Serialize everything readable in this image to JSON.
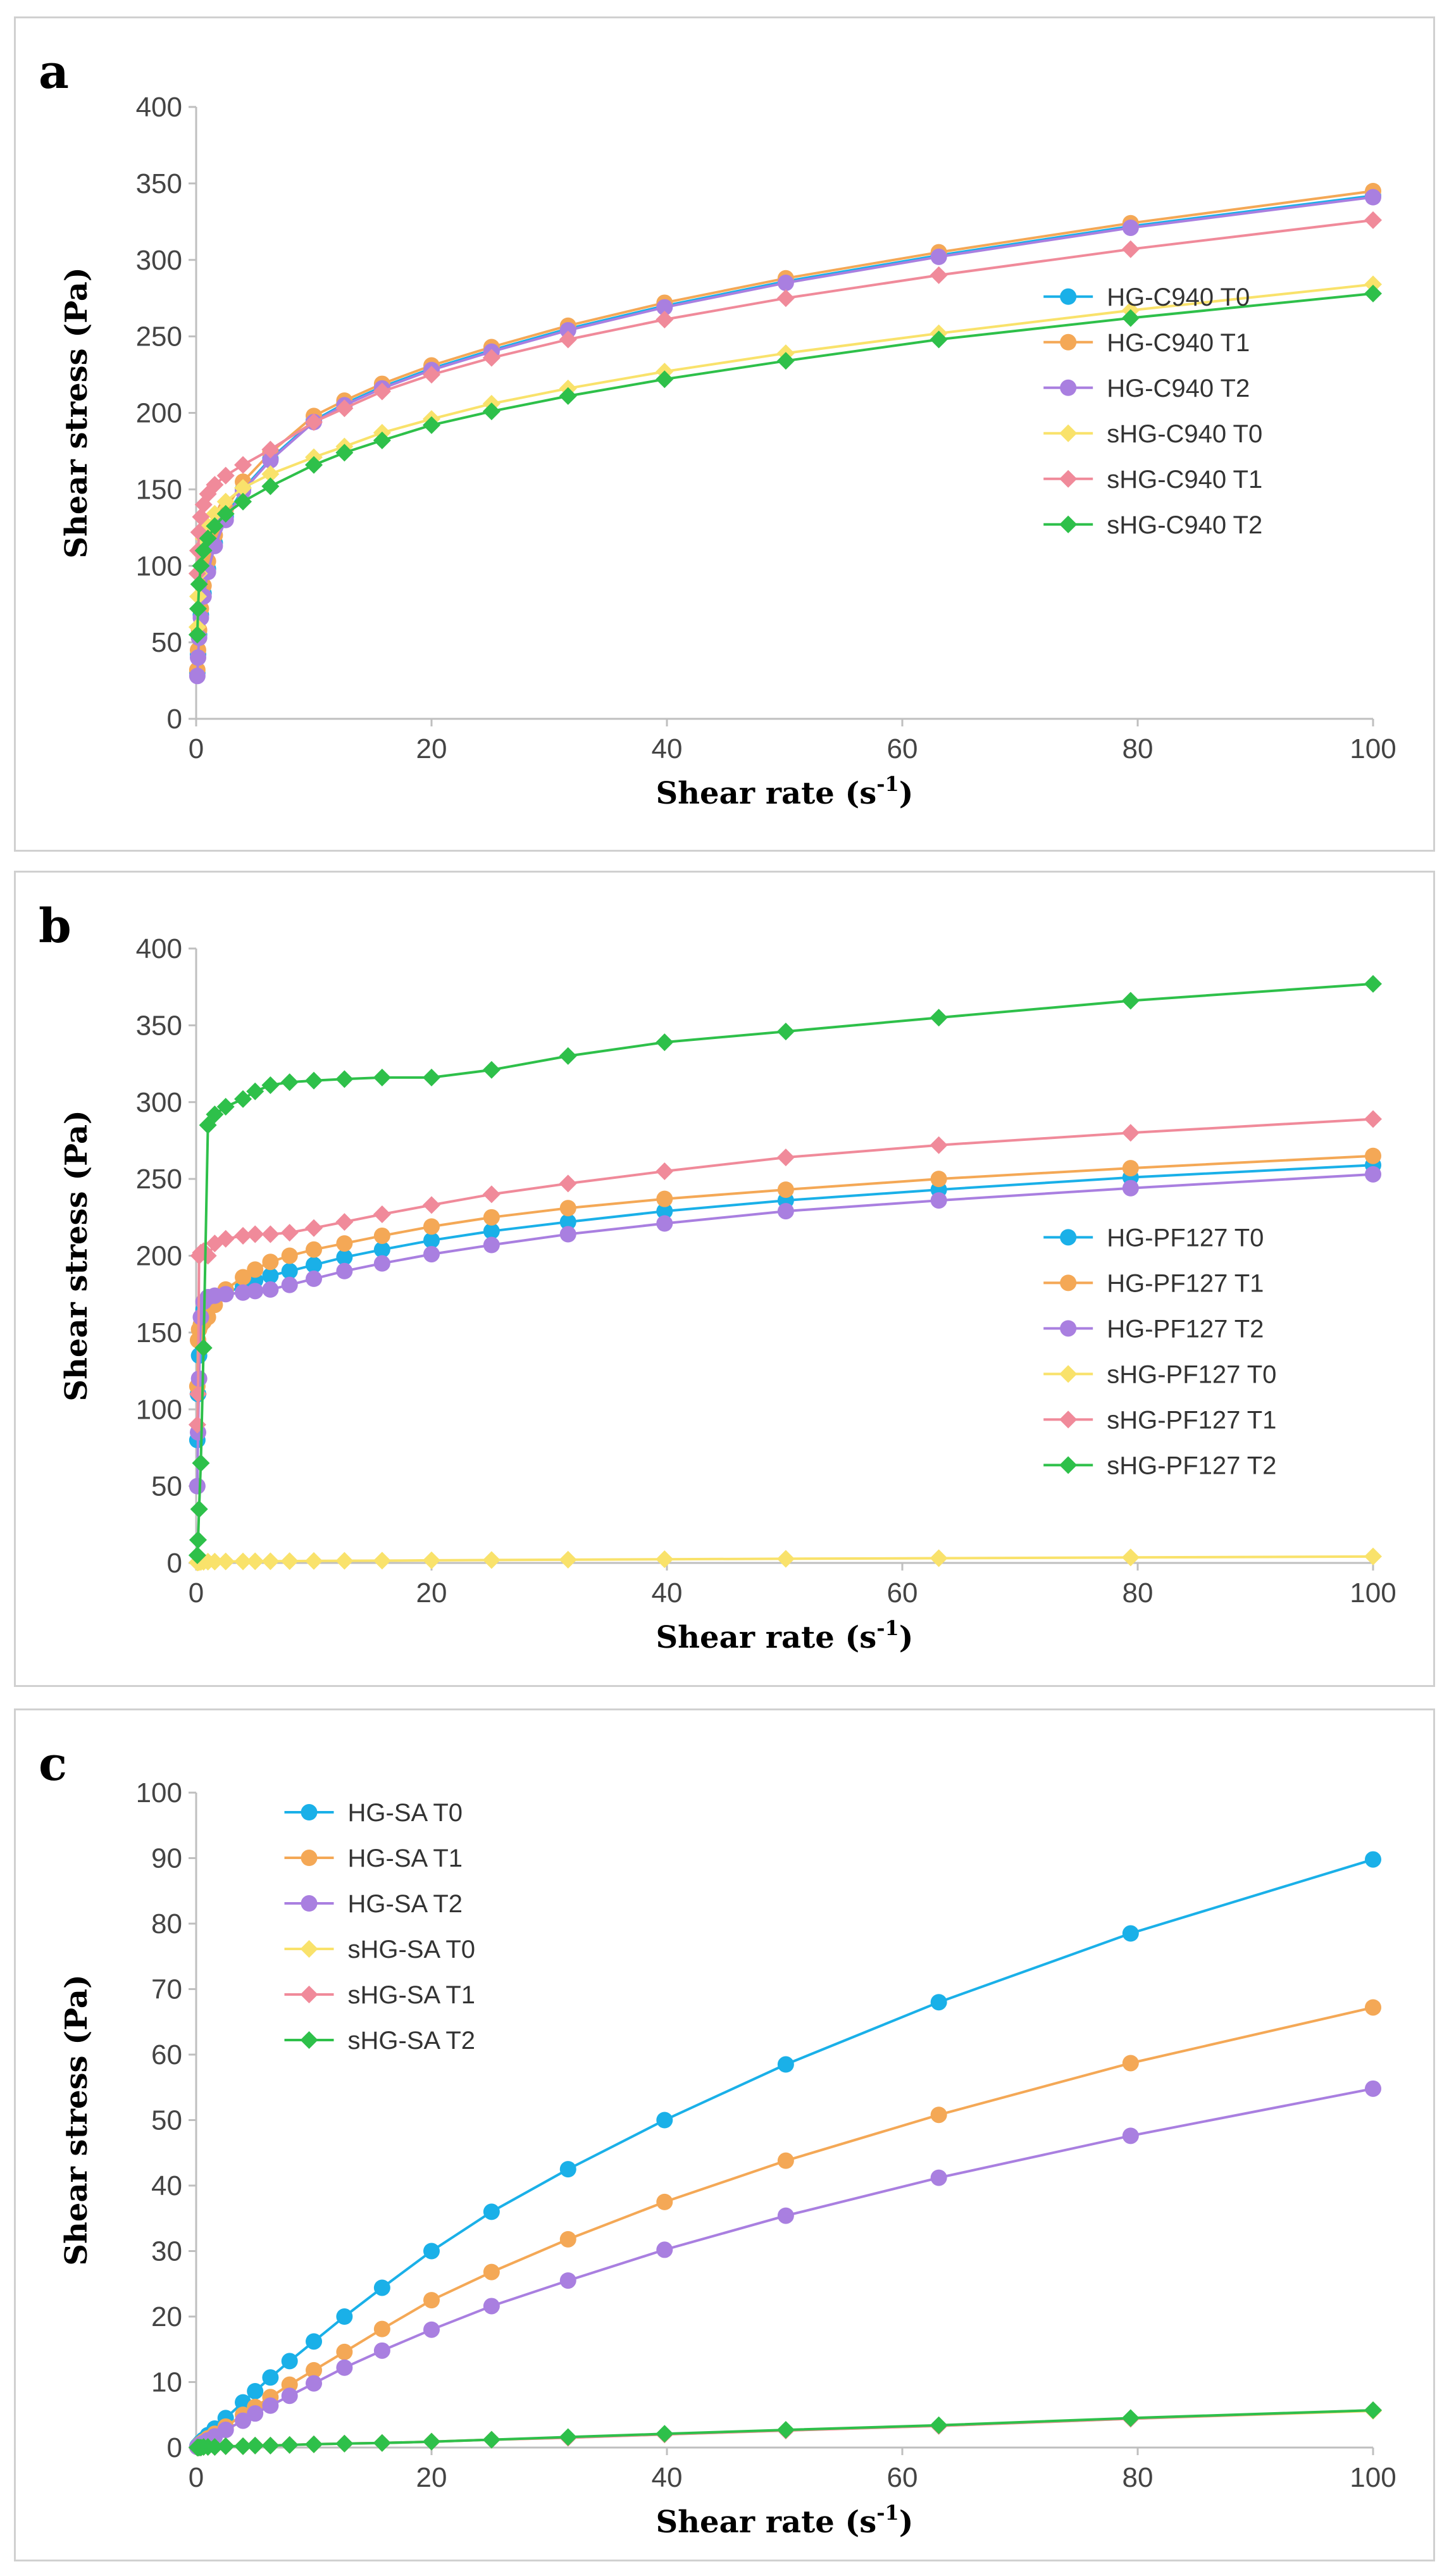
{
  "chart_data": [
    {
      "panel": "a",
      "type": "line",
      "xlabel": "Shear rate (s",
      "xlabel_sup": "-1",
      "xlabel_close": ")",
      "ylabel": "Shear stress (Pa)",
      "xlim": [
        0,
        100
      ],
      "ylim": [
        0,
        400
      ],
      "xticks": [
        0,
        20,
        40,
        60,
        80,
        100
      ],
      "yticks": [
        0,
        50,
        100,
        150,
        200,
        250,
        300,
        350,
        400
      ],
      "grid": false,
      "legend_position": "right",
      "legend_x": 0.72,
      "legend_y": 0.31,
      "x": [
        0.1,
        0.16,
        0.25,
        0.4,
        0.63,
        1.0,
        1.58,
        2.51,
        3.98,
        6.31,
        10.0,
        12.6,
        15.8,
        20.0,
        25.1,
        31.6,
        39.8,
        50.1,
        63.1,
        79.4,
        100
      ],
      "series": [
        {
          "name": "HG-C940  T0",
          "color": "#1ab0e8",
          "marker": "circle",
          "values": [
            30,
            42,
            55,
            68,
            82,
            98,
            115,
            132,
            150,
            170,
            195,
            206,
            217,
            229,
            241,
            255,
            270,
            286,
            303,
            322,
            342
          ]
        },
        {
          "name": "HG-C940  T1",
          "color": "#f4a856",
          "marker": "circle",
          "values": [
            32,
            45,
            58,
            72,
            87,
            103,
            120,
            137,
            155,
            174,
            198,
            208,
            219,
            231,
            243,
            257,
            272,
            288,
            305,
            324,
            345
          ]
        },
        {
          "name": "HG-C940  T2",
          "color": "#a97fe0",
          "marker": "circle",
          "values": [
            28,
            40,
            53,
            66,
            80,
            96,
            113,
            130,
            149,
            169,
            194,
            205,
            216,
            228,
            240,
            254,
            269,
            285,
            302,
            321,
            341
          ]
        },
        {
          "name": "sHG-C940  T0",
          "color": "#f9e26b",
          "marker": "diamond",
          "values": [
            60,
            80,
            95,
            108,
            118,
            126,
            134,
            142,
            151,
            160,
            171,
            178,
            187,
            196,
            206,
            216,
            227,
            239,
            252,
            267,
            284
          ]
        },
        {
          "name": "sHG-C940  T1",
          "color": "#f08a9a",
          "marker": "diamond",
          "values": [
            95,
            110,
            122,
            132,
            140,
            147,
            153,
            159,
            166,
            176,
            194,
            203,
            214,
            225,
            236,
            248,
            261,
            275,
            290,
            307,
            326
          ]
        },
        {
          "name": "sHG-C940  T2",
          "color": "#2ec04a",
          "marker": "diamond",
          "values": [
            55,
            72,
            88,
            100,
            110,
            118,
            126,
            134,
            142,
            152,
            166,
            174,
            182,
            192,
            201,
            211,
            222,
            234,
            248,
            262,
            278
          ]
        }
      ]
    },
    {
      "panel": "b",
      "type": "line",
      "xlabel": "Shear rate (s",
      "xlabel_sup": "-1",
      "xlabel_close": ")",
      "ylabel": "Shear stress (Pa)",
      "xlim": [
        0,
        100
      ],
      "ylim": [
        0,
        400
      ],
      "xticks": [
        0,
        20,
        40,
        60,
        80,
        100
      ],
      "yticks": [
        0,
        50,
        100,
        150,
        200,
        250,
        300,
        350,
        400
      ],
      "grid": false,
      "legend_position": "right",
      "legend_x": 0.72,
      "legend_y": 0.47,
      "x": [
        0.1,
        0.16,
        0.25,
        0.4,
        0.63,
        1.0,
        1.58,
        2.51,
        3.98,
        5.01,
        6.31,
        7.94,
        10.0,
        12.6,
        15.8,
        20.0,
        25.1,
        31.6,
        39.8,
        50.1,
        63.1,
        79.4,
        100
      ],
      "series": [
        {
          "name": "HG-PF127  T0",
          "color": "#1ab0e8",
          "marker": "circle",
          "values": [
            80,
            110,
            135,
            155,
            165,
            170,
            173,
            176,
            180,
            184,
            187,
            190,
            194,
            199,
            204,
            210,
            216,
            222,
            229,
            236,
            243,
            251,
            259
          ]
        },
        {
          "name": "HG-PF127  T1",
          "color": "#f4a856",
          "marker": "circle",
          "values": [
            115,
            145,
            152,
            155,
            157,
            160,
            168,
            178,
            186,
            191,
            196,
            200,
            204,
            208,
            213,
            219,
            225,
            231,
            237,
            243,
            250,
            257,
            265
          ]
        },
        {
          "name": "HG-PF127  T2",
          "color": "#a97fe0",
          "marker": "circle",
          "values": [
            50,
            85,
            120,
            160,
            170,
            173,
            174,
            175,
            176,
            177,
            178,
            181,
            185,
            190,
            195,
            201,
            207,
            214,
            221,
            229,
            236,
            244,
            253
          ]
        },
        {
          "name": "sHG-PF127  T0",
          "color": "#f9e26b",
          "marker": "diamond",
          "values": [
            0.3,
            0.4,
            0.5,
            0.6,
            0.7,
            0.8,
            0.9,
            1.0,
            1.0,
            1.1,
            1.1,
            1.2,
            1.3,
            1.4,
            1.5,
            1.7,
            1.9,
            2.1,
            2.4,
            2.7,
            3.1,
            3.6,
            4.2
          ]
        },
        {
          "name": "sHG-PF127  T1",
          "color": "#f08a9a",
          "marker": "diamond",
          "values": [
            90,
            110,
            200,
            202,
            203,
            200,
            208,
            211,
            213,
            214,
            214,
            215,
            218,
            222,
            227,
            233,
            240,
            247,
            255,
            264,
            272,
            280,
            289
          ]
        },
        {
          "name": "sHG-PF127  T2",
          "color": "#2ec04a",
          "marker": "diamond",
          "values": [
            5,
            15,
            35,
            65,
            140,
            285,
            292,
            297,
            302,
            307,
            311,
            313,
            314,
            315,
            316,
            316,
            321,
            330,
            339,
            346,
            355,
            366,
            377
          ]
        }
      ]
    },
    {
      "panel": "c",
      "type": "line",
      "xlabel": "Shear rate (s",
      "xlabel_sup": "-1",
      "xlabel_close": ")",
      "ylabel": "Shear stress (Pa)",
      "xlim": [
        0,
        100
      ],
      "ylim": [
        0,
        100
      ],
      "xticks": [
        0,
        20,
        40,
        60,
        80,
        100
      ],
      "yticks": [
        0,
        10,
        20,
        30,
        40,
        50,
        60,
        70,
        80,
        90,
        100
      ],
      "grid": false,
      "legend_position": "top-left",
      "legend_x": 0.075,
      "legend_y": 0.03,
      "x": [
        0.1,
        0.16,
        0.25,
        0.4,
        0.63,
        1.0,
        1.58,
        2.51,
        3.98,
        5.01,
        6.31,
        7.94,
        10.0,
        12.6,
        15.8,
        20.0,
        25.1,
        31.6,
        39.8,
        50.1,
        63.1,
        79.4,
        100
      ],
      "series": [
        {
          "name": "HG-SA  T0",
          "color": "#1ab0e8",
          "marker": "circle",
          "values": [
            0.2,
            0.3,
            0.5,
            0.8,
            1.2,
            1.9,
            2.9,
            4.5,
            6.9,
            8.6,
            10.7,
            13.2,
            16.2,
            20.0,
            24.4,
            30.0,
            36.0,
            42.5,
            50.0,
            58.5,
            68.0,
            78.5,
            89.8
          ]
        },
        {
          "name": "HG-SA  T1",
          "color": "#f4a856",
          "marker": "circle",
          "values": [
            0.1,
            0.2,
            0.4,
            0.6,
            0.9,
            1.4,
            2.1,
            3.2,
            5.0,
            6.2,
            7.7,
            9.6,
            11.8,
            14.6,
            18.1,
            22.5,
            26.8,
            31.8,
            37.5,
            43.8,
            50.8,
            58.7,
            67.2
          ]
        },
        {
          "name": "HG-SA  T2",
          "color": "#a97fe0",
          "marker": "circle",
          "values": [
            0.1,
            0.2,
            0.3,
            0.5,
            0.7,
            1.1,
            1.7,
            2.7,
            4.1,
            5.2,
            6.4,
            7.9,
            9.8,
            12.2,
            14.8,
            18.0,
            21.6,
            25.5,
            30.2,
            35.4,
            41.2,
            47.6,
            54.8
          ]
        },
        {
          "name": "sHG-SA  T0",
          "color": "#f9e26b",
          "marker": "diamond",
          "values": [
            0.0,
            0.0,
            0.0,
            0.0,
            0.1,
            0.1,
            0.1,
            0.2,
            0.2,
            0.3,
            0.3,
            0.4,
            0.5,
            0.6,
            0.7,
            0.9,
            1.2,
            1.5,
            2.0,
            2.6,
            3.3,
            4.4,
            5.6
          ]
        },
        {
          "name": "sHG-SA  T1",
          "color": "#f08a9a",
          "marker": "diamond",
          "values": [
            0.0,
            0.0,
            0.0,
            0.0,
            0.1,
            0.1,
            0.1,
            0.2,
            0.2,
            0.3,
            0.3,
            0.4,
            0.5,
            0.6,
            0.7,
            0.9,
            1.2,
            1.5,
            2.0,
            2.6,
            3.3,
            4.4,
            5.7
          ]
        },
        {
          "name": "sHG-SA  T2",
          "color": "#2ec04a",
          "marker": "diamond",
          "values": [
            0.0,
            0.0,
            0.0,
            0.0,
            0.1,
            0.1,
            0.1,
            0.2,
            0.2,
            0.3,
            0.3,
            0.4,
            0.5,
            0.6,
            0.7,
            0.9,
            1.2,
            1.6,
            2.1,
            2.7,
            3.4,
            4.5,
            5.7
          ]
        }
      ]
    }
  ],
  "labels": {
    "a": "a",
    "b": "b",
    "c": "c"
  }
}
